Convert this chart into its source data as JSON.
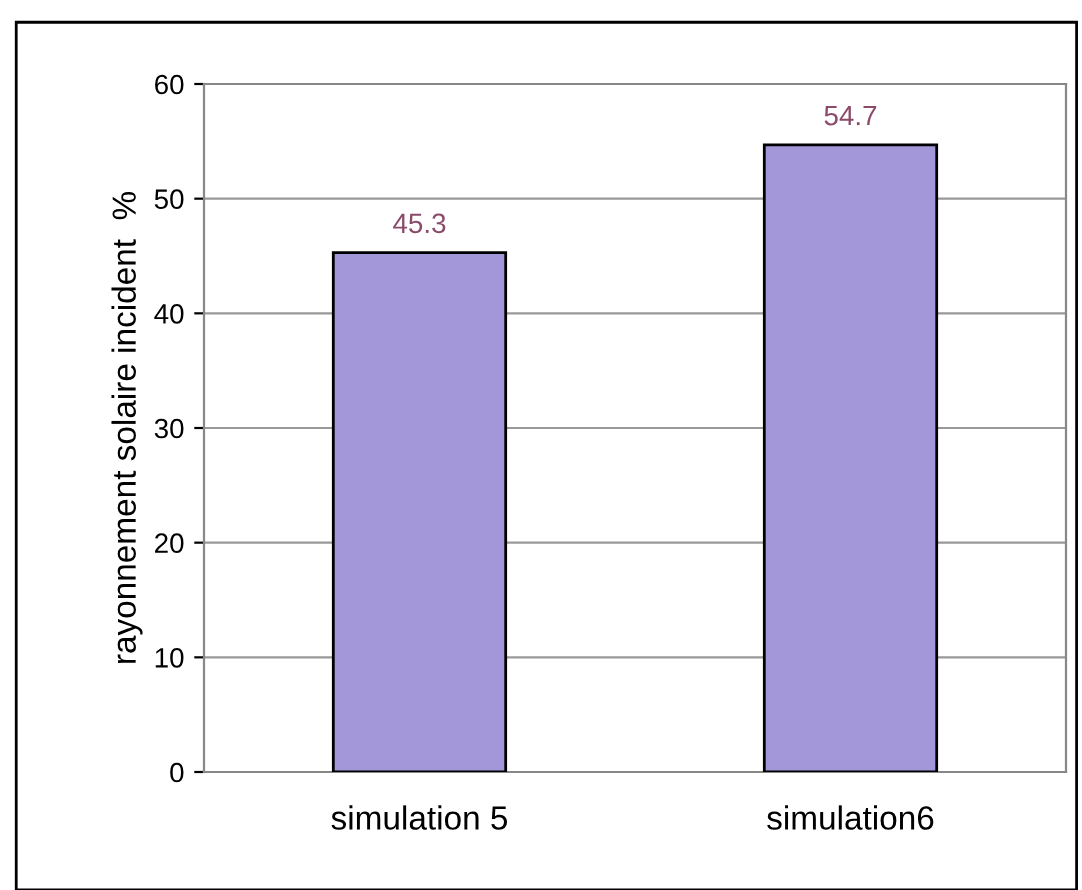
{
  "chart_data": {
    "type": "bar",
    "ylabel": "rayonnement solaire incident  %",
    "categories": [
      "simulation 5",
      "simulation6"
    ],
    "values": [
      45.3,
      54.7
    ],
    "color": "#a397d9",
    "ylim": [
      0,
      60
    ],
    "yticks": [
      0,
      10,
      20,
      30,
      40,
      50,
      60
    ],
    "grid": "y",
    "data_labels": true
  }
}
